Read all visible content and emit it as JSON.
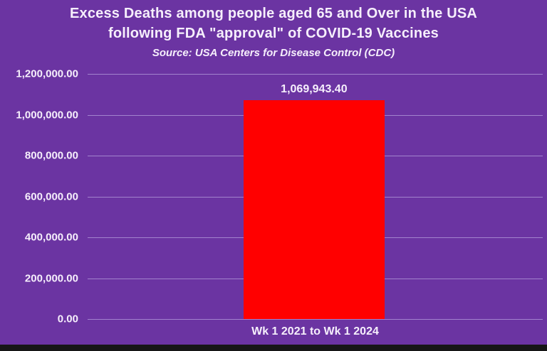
{
  "title": {
    "line1": "Excess Deaths among people aged 65 and Over in the USA",
    "line2": "following FDA \"approval\" of COVID-19 Vaccines",
    "source": "Source: USA Centers for Disease Control (CDC)"
  },
  "chart_data": {
    "type": "bar",
    "title": "Excess Deaths among people aged 65 and Over in the USA following FDA \"approval\" of COVID-19 Vaccines",
    "subtitle": "Source: USA Centers for Disease Control (CDC)",
    "categories": [
      "Wk 1 2021 to Wk 1 2024"
    ],
    "values": [
      1069943.4
    ],
    "value_labels": [
      "1,069,943.40"
    ],
    "xlabel": "",
    "ylabel": "",
    "ylim": [
      0,
      1200000
    ],
    "ytick_interval": 200000,
    "ytick_labels": [
      "1,200,000.00",
      "1,000,000.00",
      "800,000.00",
      "600,000.00",
      "400,000.00",
      "200,000.00",
      "0.00"
    ],
    "grid": true,
    "legend": "none",
    "bar_color": "#FF0000",
    "background_color": "#6B34A2",
    "gridline_color": "#AC92D6",
    "text_color": "#F6EFFC"
  }
}
